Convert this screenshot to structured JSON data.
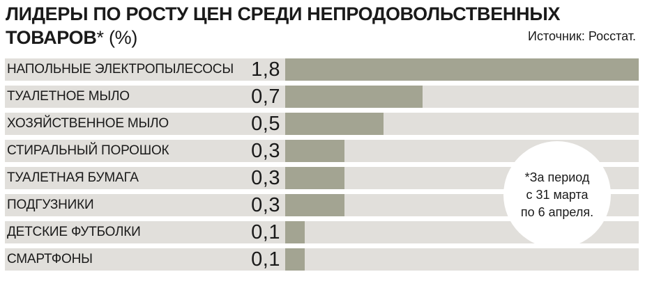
{
  "title": {
    "line1": "ЛИДЕРЫ ПО РОСТУ ЦЕН СРЕДИ НЕПРОДОВОЛЬСТВЕННЫХ",
    "line2": "ТОВАРОВ",
    "unit": "* (%)"
  },
  "source": "Источник: Росстат.",
  "footnote": {
    "line1": "*За период",
    "line2": "с 31 марта",
    "line3": "по 6 апреля."
  },
  "colors": {
    "bar": "#a3a492",
    "track": "#e1dfdb"
  },
  "chart_data": {
    "type": "bar",
    "orientation": "horizontal",
    "categories": [
      "НАПОЛЬНЫЕ ЭЛЕКТРОПЫЛЕСОСЫ",
      "ТУАЛЕТНОЕ МЫЛО",
      "ХОЗЯЙСТВЕННОЕ МЫЛО",
      "СТИРАЛЬНЫЙ ПОРОШОК",
      "ТУАЛЕТНАЯ БУМАГА",
      "ПОДГУЗНИКИ",
      "ДЕТСКИЕ ФУТБОЛКИ",
      "СМАРТФОНЫ"
    ],
    "values": [
      1.8,
      0.7,
      0.5,
      0.3,
      0.3,
      0.3,
      0.1,
      0.1
    ],
    "value_labels": [
      "1,8",
      "0,7",
      "0,5",
      "0,3",
      "0,3",
      "0,3",
      "0,1",
      "0,1"
    ],
    "xlim": [
      0,
      1.8
    ],
    "grid": false,
    "legend": "none"
  }
}
